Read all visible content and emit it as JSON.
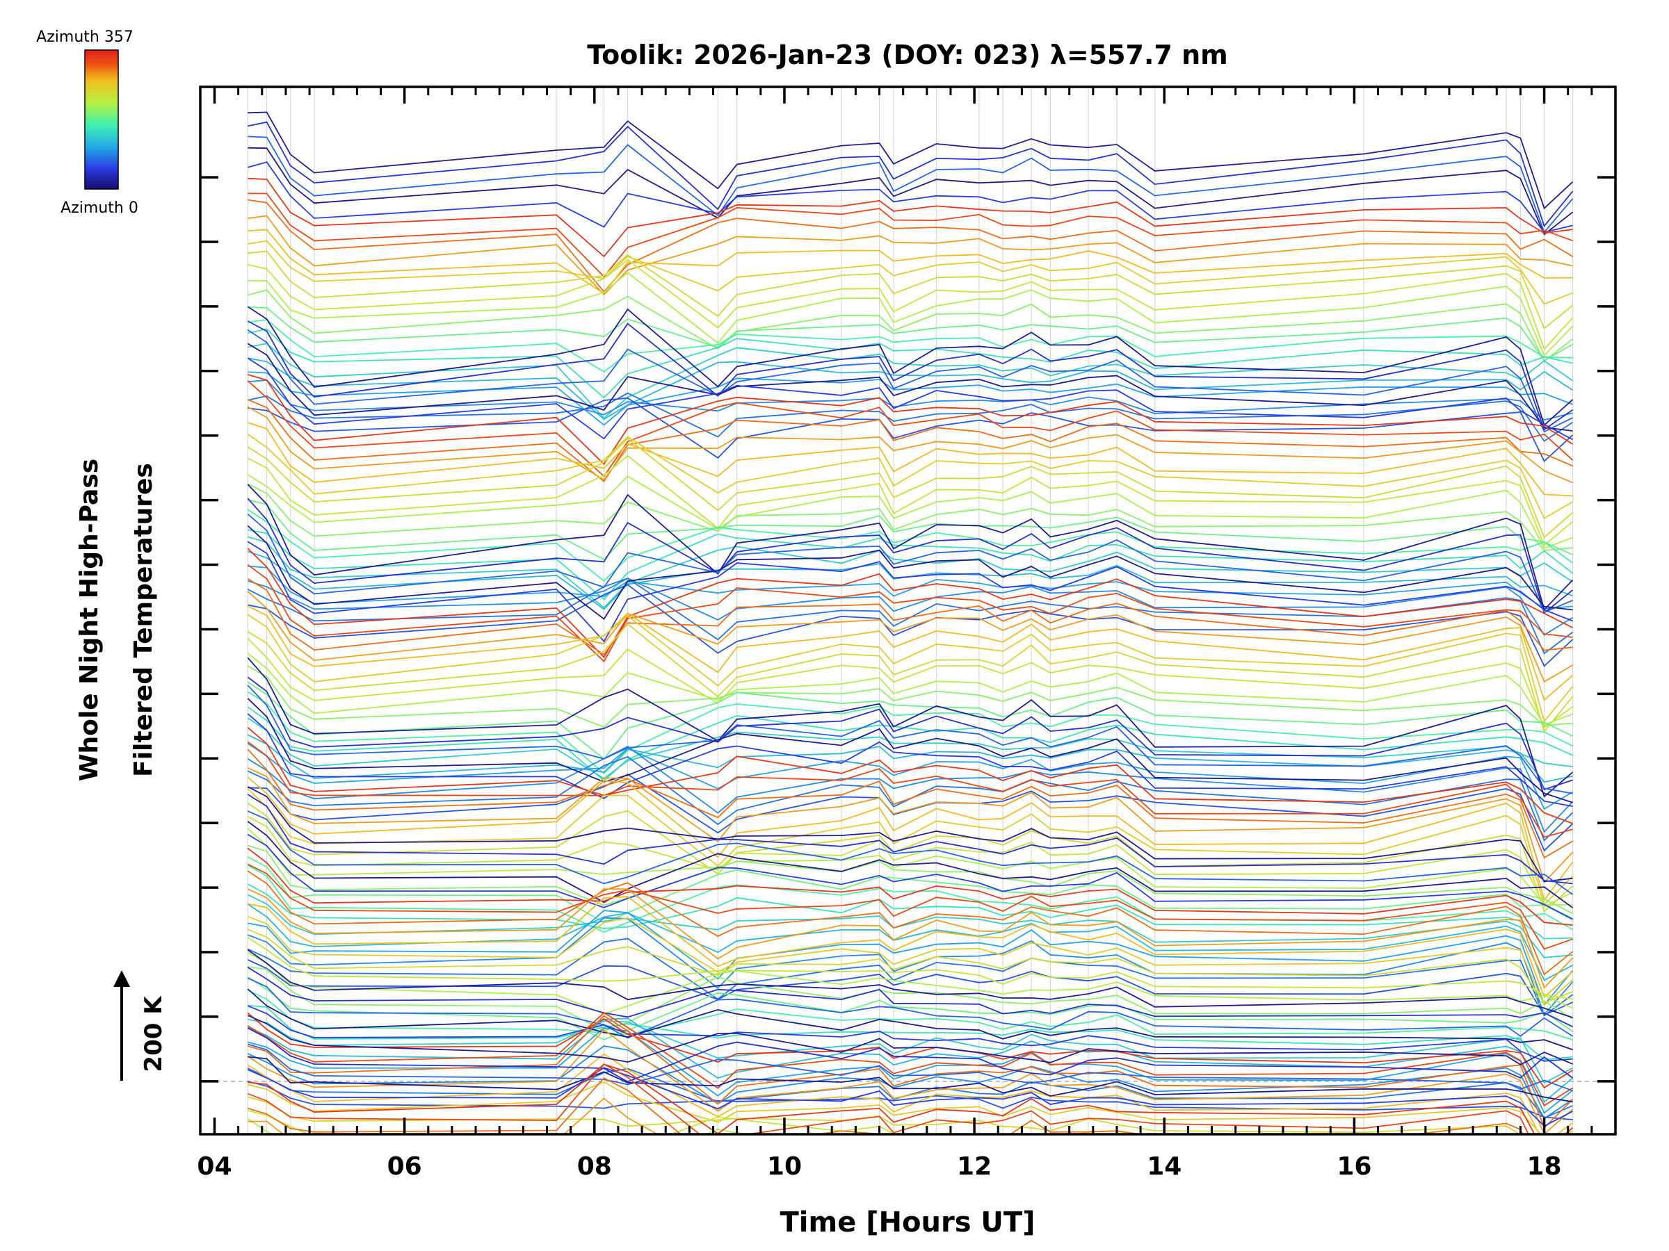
{
  "chart_data": {
    "type": "line",
    "title": "Toolik: 2026-Jan-23 (DOY: 023) λ=557.7 nm",
    "xlabel": "Time [Hours UT]",
    "ylabel_line1": "Whole Night High-Pass",
    "ylabel_line2": "Filtered Temperatures",
    "xlim": [
      3.85,
      18.75
    ],
    "x_ticks": [
      4,
      6,
      8,
      10,
      12,
      14,
      16,
      18
    ],
    "x_tick_labels": [
      "04",
      "06",
      "08",
      "10",
      "12",
      "14",
      "16",
      "18"
    ],
    "ylim": [
      -0.82,
      15.4
    ],
    "y_major_ticks": 15,
    "scale_bar_label": "200 K",
    "colorbar": {
      "top_label": "Azimuth 357",
      "bottom_label": "Azimuth 0",
      "colormap": "rainbow",
      "stops": [
        "#1a0f70",
        "#2838e0",
        "#23a8e8",
        "#3ff0b0",
        "#b8f040",
        "#f0c020",
        "#f05010",
        "#e01f1f"
      ]
    },
    "times": [
      4.35,
      4.55,
      4.8,
      5.05,
      7.6,
      8.1,
      8.35,
      9.3,
      9.5,
      10.6,
      11.0,
      11.15,
      11.6,
      12.05,
      12.3,
      12.6,
      12.8,
      13.2,
      13.5,
      13.9,
      16.1,
      17.6,
      17.75,
      18.0,
      18.3
    ],
    "event_bumps": [
      {
        "t": 8.2,
        "amp": 0.6,
        "w": 0.35
      },
      {
        "t": 9.35,
        "amp": -0.4,
        "w": 0.22
      },
      {
        "t": 11.15,
        "amp": -0.15,
        "w": 0.15
      },
      {
        "t": 12.6,
        "amp": 0.15,
        "w": 0.3
      },
      {
        "t": 17.7,
        "amp": 0.2,
        "w": 0.25
      },
      {
        "t": 18.05,
        "amp": -0.5,
        "w": 0.15
      }
    ],
    "groups": [
      {
        "base": 15,
        "shape": [
          0.0,
          0.0,
          -0.6,
          -0.9,
          -0.6,
          -1.0,
          -0.5,
          -0.9,
          -0.6,
          -0.5,
          -0.4,
          -0.7,
          -0.5,
          -0.5,
          -0.6,
          -0.5,
          -0.6,
          -0.5,
          -0.5,
          -0.9,
          -0.6,
          -0.4,
          -0.6,
          -1.2,
          -1.0
        ]
      },
      {
        "base": 12,
        "shape": [
          0.0,
          -0.2,
          -0.8,
          -1.2,
          -0.8,
          -1.1,
          -0.5,
          -0.9,
          -0.7,
          -0.6,
          -0.5,
          -0.9,
          -0.6,
          -0.6,
          -0.7,
          -0.6,
          -0.7,
          -0.6,
          -0.5,
          -0.9,
          -1.0,
          -0.6,
          -0.8,
          -1.4,
          -1.4
        ]
      },
      {
        "base": 9.2,
        "shape": [
          0.0,
          -0.3,
          -1.0,
          -1.3,
          -0.9,
          -1.2,
          -0.6,
          -1.0,
          -0.7,
          -0.6,
          -0.5,
          -0.8,
          -0.6,
          -0.6,
          -0.8,
          -0.6,
          -0.8,
          -0.6,
          -0.5,
          -0.8,
          -1.1,
          -0.6,
          -0.7,
          -1.6,
          -1.4
        ]
      },
      {
        "base": 6.5,
        "shape": [
          0.0,
          -0.3,
          -1.0,
          -1.1,
          -1.0,
          -0.8,
          -0.7,
          -1.1,
          -0.8,
          -0.8,
          -0.6,
          -0.9,
          -0.7,
          -0.8,
          -0.9,
          -0.7,
          -0.9,
          -0.8,
          -0.7,
          -1.3,
          -1.3,
          -0.8,
          -1.0,
          -1.9,
          -1.7
        ]
      },
      {
        "base": 4.6,
        "shape": [
          0.0,
          -0.2,
          -0.7,
          -0.9,
          -0.9,
          -0.7,
          -0.6,
          -0.9,
          -0.8,
          -0.8,
          -0.7,
          -0.9,
          -0.7,
          -0.8,
          -0.9,
          -0.7,
          -0.8,
          -0.8,
          -0.7,
          -1.1,
          -1.1,
          -0.8,
          -0.9,
          -1.5,
          -1.4
        ]
      },
      {
        "base": 2.0,
        "shape": [
          0.0,
          -0.2,
          -0.5,
          -0.6,
          -0.5,
          -0.2,
          -0.4,
          -0.7,
          -0.6,
          -0.6,
          -0.5,
          -0.7,
          -0.6,
          -0.6,
          -0.7,
          -0.6,
          -0.7,
          -0.6,
          -0.6,
          -0.8,
          -0.8,
          -0.6,
          -0.7,
          -1.1,
          -1.0
        ]
      },
      {
        "base": 1.0,
        "shape": [
          0.0,
          -0.1,
          -0.4,
          -0.5,
          -0.5,
          -0.1,
          -0.3,
          -0.6,
          -0.5,
          -0.5,
          -0.4,
          -0.6,
          -0.5,
          -0.5,
          -0.6,
          -0.5,
          -0.6,
          -0.5,
          -0.5,
          -0.6,
          -0.6,
          -0.5,
          -0.6,
          -0.9,
          -0.8
        ]
      }
    ],
    "lines_per_group": 24,
    "line_spacing": 0.2,
    "baseline_y": 0,
    "baseline_style": "dashed gray"
  }
}
